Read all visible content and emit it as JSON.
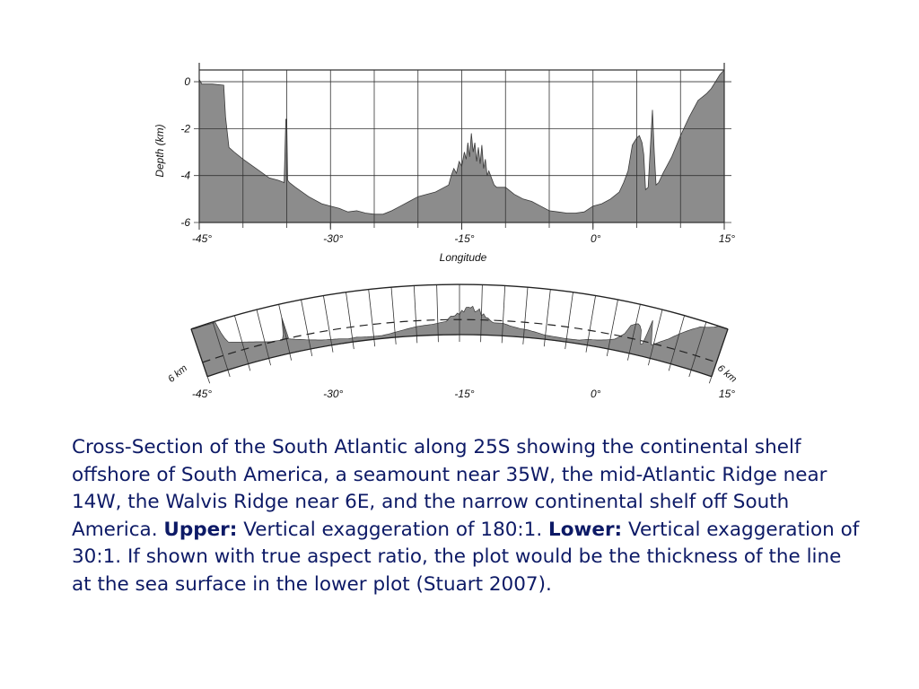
{
  "chart_data": [
    {
      "type": "area",
      "x": [
        -45,
        -44.7,
        -43.5,
        -42.2,
        -42,
        -41.6,
        -41,
        -40,
        -38.5,
        -37,
        -36,
        -35.3,
        -35.1,
        -35,
        -34.9,
        -34.7,
        -34,
        -32.5,
        -31,
        -30,
        -29,
        -28,
        -27,
        -26,
        -25,
        -24,
        -23,
        -22,
        -21,
        -20,
        -19,
        -18,
        -17,
        -16.5,
        -16.2,
        -15.9,
        -15.6,
        -15.3,
        -15,
        -14.7,
        -14.5,
        -14.3,
        -14.1,
        -13.9,
        -13.7,
        -13.5,
        -13.3,
        -13.1,
        -12.9,
        -12.7,
        -12.5,
        -12.3,
        -12.1,
        -11.9,
        -11.6,
        -11.3,
        -11,
        -10,
        -9,
        -8,
        -7,
        -6,
        -5,
        -4,
        -3,
        -2,
        -1,
        0,
        1,
        2,
        3,
        3.5,
        4,
        4.5,
        5,
        5.3,
        5.6,
        5.8,
        6,
        6.3,
        6.6,
        6.8,
        7,
        7.2,
        7.5,
        8,
        9,
        10,
        11,
        12,
        13,
        13.5,
        14,
        14.5,
        15
      ],
      "y": [
        0.1,
        -0.1,
        -0.1,
        -0.15,
        -1.5,
        -2.8,
        -3.0,
        -3.3,
        -3.7,
        -4.1,
        -4.2,
        -4.3,
        -1.6,
        -1.6,
        -4.2,
        -4.3,
        -4.5,
        -4.9,
        -5.2,
        -5.3,
        -5.4,
        -5.55,
        -5.5,
        -5.6,
        -5.65,
        -5.65,
        -5.5,
        -5.3,
        -5.1,
        -4.9,
        -4.8,
        -4.7,
        -4.5,
        -4.4,
        -4.0,
        -3.7,
        -3.9,
        -3.4,
        -3.6,
        -3.0,
        -3.3,
        -2.6,
        -3.2,
        -2.2,
        -3.0,
        -2.6,
        -3.4,
        -2.8,
        -3.5,
        -2.7,
        -3.7,
        -3.3,
        -4.0,
        -3.8,
        -4.1,
        -4.4,
        -4.5,
        -4.5,
        -4.8,
        -5.0,
        -5.1,
        -5.3,
        -5.5,
        -5.55,
        -5.6,
        -5.6,
        -5.55,
        -5.3,
        -5.2,
        -5.0,
        -4.7,
        -4.3,
        -3.8,
        -2.7,
        -2.4,
        -2.3,
        -2.6,
        -3.1,
        -4.6,
        -4.5,
        -2.5,
        -1.2,
        -3.0,
        -4.4,
        -4.3,
        -3.9,
        -3.2,
        -2.3,
        -1.5,
        -0.8,
        -0.5,
        -0.3,
        0.0,
        0.3,
        0.5
      ],
      "xlim": [
        -45,
        15
      ],
      "ylim": [
        -6,
        0.5
      ],
      "xticks": [
        "-45°",
        "-30°",
        "-15°",
        "0°",
        "15°"
      ],
      "yticks": [
        "0",
        "-2",
        "-4",
        "-6"
      ],
      "xlabel": "Longitude",
      "ylabel": "Depth (km)",
      "grid": true
    },
    {
      "type": "area",
      "xticks": [
        "-45°",
        "-30°",
        "-15°",
        "0°",
        "15°"
      ],
      "scale_label_left": "6 km",
      "scale_label_right": "6 km"
    }
  ],
  "caption": {
    "line1": "Cross-Section of the South Atlantic along 25S showing the continental shelf offshore of South America, a seamount near 35W, the mid-Atlantic Ridge near 14W, the Walvis Ridge near 6E, and the narrow continental shelf off South America. ",
    "upper_label": "Upper:",
    "upper_text": " Vertical exaggeration of 180:1. ",
    "lower_label": "Lower:",
    "lower_text": " Vertical exaggeration of 30:1. If shown with true aspect ratio, the plot would be the thickness of the line at the sea surface in the lower plot (Stuart 2007)."
  },
  "colors": {
    "fill": "#8c8c8c",
    "grid": "#333333",
    "caption_text": "#0d1a66"
  }
}
